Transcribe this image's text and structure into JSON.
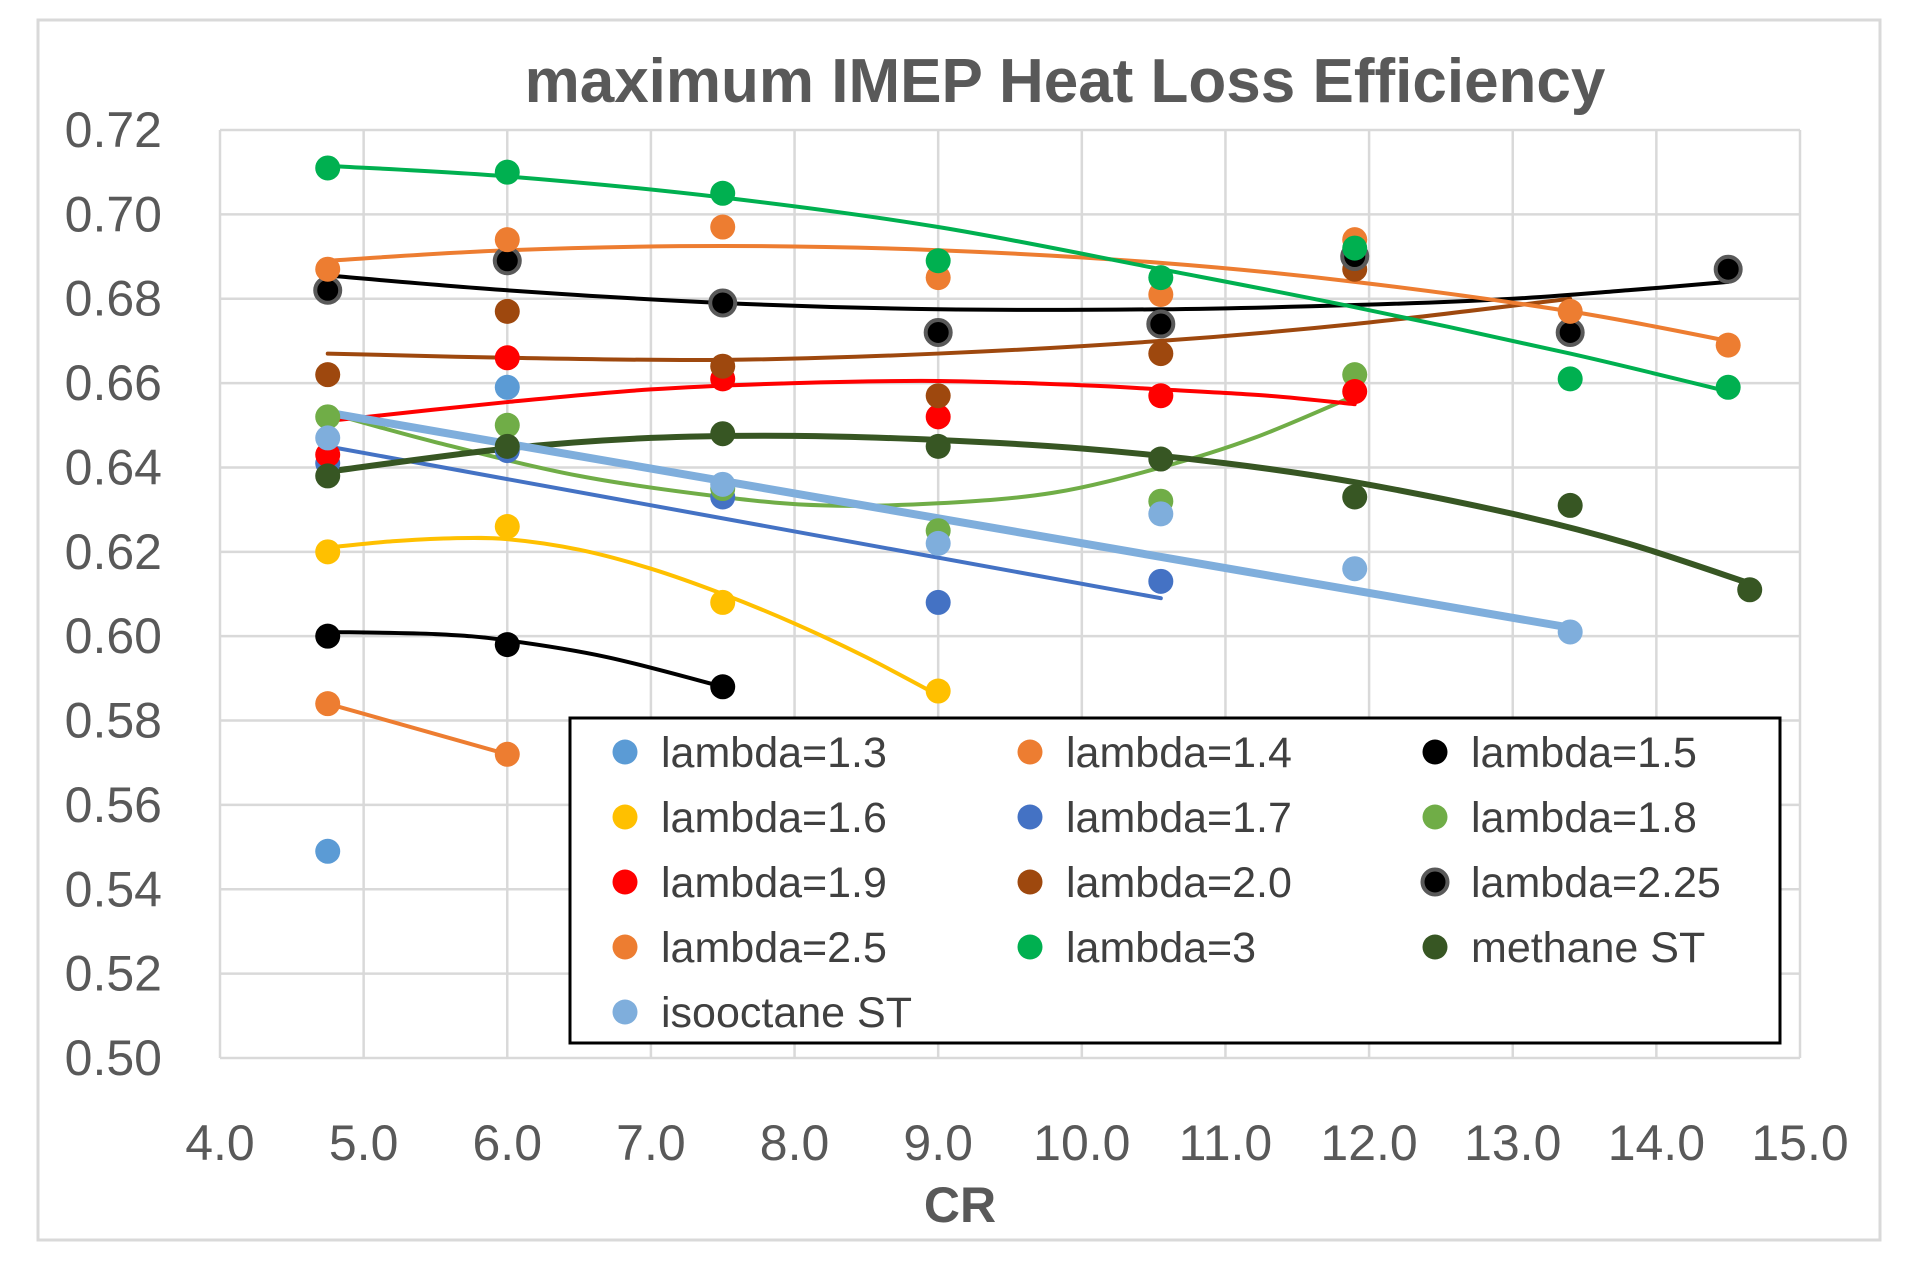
{
  "chart_data": {
    "type": "scatter",
    "title": "maximum IMEP Heat Loss Efficiency",
    "xlabel": "CR",
    "ylabel": "",
    "xlim": [
      4.0,
      15.0
    ],
    "ylim": [
      0.5,
      0.72
    ],
    "xticks": [
      "4.0",
      "5.0",
      "6.0",
      "7.0",
      "8.0",
      "9.0",
      "10.0",
      "11.0",
      "12.0",
      "13.0",
      "14.0",
      "15.0"
    ],
    "yticks": [
      "0.50",
      "0.52",
      "0.54",
      "0.56",
      "0.58",
      "0.60",
      "0.62",
      "0.64",
      "0.66",
      "0.68",
      "0.70",
      "0.72"
    ],
    "grid": true,
    "legend_position": "bottom-right inside plot",
    "series": [
      {
        "name": "lambda=1.3",
        "color": "#5B9BD5",
        "x": [
          4.75,
          6.0
        ],
        "y": [
          0.549,
          0.659
        ]
      },
      {
        "name": "lambda=1.4",
        "color": "#ED7D31",
        "x": [
          4.75,
          6.0
        ],
        "y": [
          0.584,
          0.572
        ],
        "trend": [
          [
            4.75,
            0.584
          ],
          [
            6.0,
            0.572
          ]
        ]
      },
      {
        "name": "lambda=1.5",
        "color": "#000000",
        "x": [
          4.75,
          6.0,
          7.5
        ],
        "y": [
          0.6,
          0.598,
          0.588
        ],
        "trend": [
          [
            4.75,
            0.601
          ],
          [
            5.5,
            0.6005
          ],
          [
            6.0,
            0.599
          ],
          [
            6.7,
            0.595
          ],
          [
            7.5,
            0.588
          ]
        ]
      },
      {
        "name": "lambda=1.6",
        "color": "#FFC000",
        "x": [
          4.75,
          6.0,
          7.5,
          9.0
        ],
        "y": [
          0.62,
          0.626,
          0.608,
          0.587
        ],
        "trend": [
          [
            4.75,
            0.621
          ],
          [
            5.2,
            0.6225
          ],
          [
            5.6,
            0.6232
          ],
          [
            6.0,
            0.623
          ],
          [
            6.5,
            0.6205
          ],
          [
            7.0,
            0.616
          ],
          [
            7.5,
            0.61
          ],
          [
            8.0,
            0.603
          ],
          [
            8.5,
            0.595
          ],
          [
            9.0,
            0.586
          ]
        ]
      },
      {
        "name": "lambda=1.7",
        "color": "#4472C4",
        "x": [
          4.75,
          6.0,
          7.5,
          9.0,
          10.55
        ],
        "y": [
          0.641,
          0.644,
          0.633,
          0.608,
          0.613
        ],
        "trend": [
          [
            4.75,
            0.645
          ],
          [
            10.55,
            0.609
          ]
        ]
      },
      {
        "name": "lambda=1.8",
        "color": "#70AD47",
        "x": [
          4.75,
          6.0,
          7.5,
          9.0,
          10.55,
          11.9
        ],
        "y": [
          0.652,
          0.65,
          0.635,
          0.625,
          0.632,
          0.662
        ],
        "trend": [
          [
            4.75,
            0.653
          ],
          [
            5.5,
            0.646
          ],
          [
            6.5,
            0.638
          ],
          [
            7.5,
            0.633
          ],
          [
            8.2,
            0.631
          ],
          [
            9.0,
            0.6315
          ],
          [
            9.8,
            0.634
          ],
          [
            10.55,
            0.64
          ],
          [
            11.2,
            0.647
          ],
          [
            11.9,
            0.657
          ]
        ]
      },
      {
        "name": "lambda=1.9",
        "color": "#FF0000",
        "x": [
          4.75,
          6.0,
          7.5,
          9.0,
          10.55,
          11.9
        ],
        "y": [
          0.643,
          0.666,
          0.661,
          0.652,
          0.657,
          0.658
        ],
        "trend": [
          [
            4.75,
            0.651
          ],
          [
            6.0,
            0.6555
          ],
          [
            7.0,
            0.6585
          ],
          [
            8.0,
            0.66
          ],
          [
            9.0,
            0.6605
          ],
          [
            10.0,
            0.6595
          ],
          [
            10.55,
            0.6585
          ],
          [
            11.3,
            0.657
          ],
          [
            11.9,
            0.655
          ]
        ]
      },
      {
        "name": "lambda=2.0",
        "color": "#9E480E",
        "x": [
          4.75,
          6.0,
          7.5,
          9.0,
          10.55,
          11.9
        ],
        "y": [
          0.662,
          0.677,
          0.664,
          0.657,
          0.667,
          0.687
        ],
        "trend": [
          [
            4.75,
            0.667
          ],
          [
            6.0,
            0.666
          ],
          [
            7.5,
            0.6655
          ],
          [
            9.0,
            0.667
          ],
          [
            10.55,
            0.67
          ],
          [
            11.9,
            0.674
          ],
          [
            13.4,
            0.68
          ]
        ]
      },
      {
        "name": "lambda=2.25",
        "color": "#000000",
        "edge": "#595959",
        "x": [
          4.75,
          6.0,
          7.5,
          9.0,
          10.55,
          11.9,
          13.4,
          14.5
        ],
        "y": [
          0.682,
          0.689,
          0.679,
          0.672,
          0.674,
          0.69,
          0.672,
          0.687
        ],
        "trend": [
          [
            4.75,
            0.6855
          ],
          [
            6.0,
            0.682
          ],
          [
            7.5,
            0.679
          ],
          [
            9.0,
            0.6775
          ],
          [
            10.55,
            0.6775
          ],
          [
            11.9,
            0.6785
          ],
          [
            13.0,
            0.68
          ],
          [
            13.8,
            0.682
          ],
          [
            14.5,
            0.684
          ]
        ]
      },
      {
        "name": "lambda=2.5",
        "color": "#ED7D31",
        "x": [
          4.75,
          6.0,
          7.5,
          9.0,
          10.55,
          11.9,
          13.4,
          14.5
        ],
        "y": [
          0.687,
          0.694,
          0.697,
          0.685,
          0.681,
          0.694,
          0.677,
          0.669
        ],
        "trend": [
          [
            4.75,
            0.689
          ],
          [
            6.0,
            0.6915
          ],
          [
            7.5,
            0.6925
          ],
          [
            9.0,
            0.6915
          ],
          [
            10.55,
            0.6885
          ],
          [
            11.9,
            0.684
          ],
          [
            13.4,
            0.677
          ],
          [
            14.5,
            0.67
          ]
        ]
      },
      {
        "name": "lambda=3",
        "color": "#00B050",
        "x": [
          4.75,
          6.0,
          7.5,
          9.0,
          10.55,
          11.9,
          13.4,
          14.5
        ],
        "y": [
          0.711,
          0.71,
          0.705,
          0.689,
          0.685,
          0.692,
          0.661,
          0.659
        ],
        "trend": [
          [
            4.75,
            0.7115
          ],
          [
            6.0,
            0.709
          ],
          [
            7.5,
            0.704
          ],
          [
            9.0,
            0.697
          ],
          [
            10.55,
            0.687
          ],
          [
            11.9,
            0.678
          ],
          [
            13.4,
            0.667
          ],
          [
            14.5,
            0.658
          ]
        ]
      },
      {
        "name": "methane ST",
        "color": "#375623",
        "x": [
          4.75,
          6.0,
          7.5,
          9.0,
          10.55,
          11.9,
          13.4,
          14.65
        ],
        "y": [
          0.638,
          0.645,
          0.648,
          0.645,
          0.642,
          0.633,
          0.631,
          0.611
        ],
        "trend": [
          [
            4.75,
            0.639
          ],
          [
            6.0,
            0.6445
          ],
          [
            7.0,
            0.647
          ],
          [
            8.0,
            0.6475
          ],
          [
            9.0,
            0.6465
          ],
          [
            10.0,
            0.6445
          ],
          [
            11.0,
            0.641
          ],
          [
            11.9,
            0.6365
          ],
          [
            13.0,
            0.629
          ],
          [
            13.8,
            0.622
          ],
          [
            14.65,
            0.6125
          ]
        ]
      },
      {
        "name": "isooctane ST",
        "color": "#7FAEDC",
        "x": [
          4.75,
          7.5,
          9.0,
          10.55,
          11.9,
          13.4
        ],
        "y": [
          0.647,
          0.636,
          0.622,
          0.629,
          0.616,
          0.601
        ],
        "trend": [
          [
            4.75,
            0.653
          ],
          [
            13.4,
            0.602
          ]
        ]
      }
    ]
  }
}
